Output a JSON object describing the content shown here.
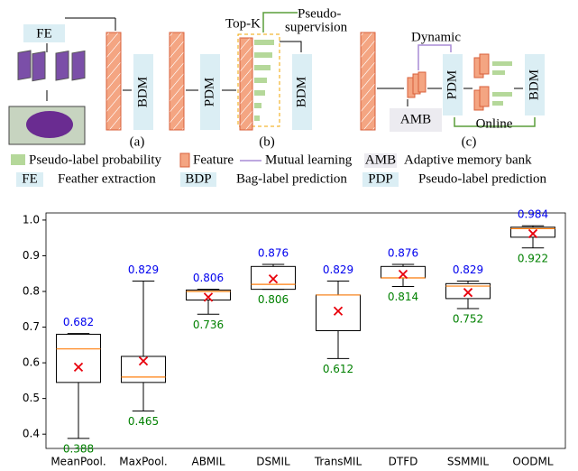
{
  "diagram": {
    "fe": "FE",
    "bdm_a": "BDM",
    "label_a": "(a)",
    "pdm_b": "PDM",
    "bdm_b": "BDM",
    "label_b": "(b)",
    "topk": "Top-K",
    "pseudo_1": "Pseudo-",
    "pseudo_2": "supervision",
    "dynamic": "Dynamic",
    "amb": "AMB",
    "pdm_c": "PDM",
    "bdm_c": "BDM",
    "online": "Online",
    "label_c": "(c)",
    "legend": [
      {
        "label": "Pseudo-label probability"
      },
      {
        "label": "Feature"
      },
      {
        "label": "Mutual learning"
      },
      {
        "key": "AMB",
        "label": "Adaptive memory bank"
      },
      {
        "key": "FE",
        "label": "Feather extraction"
      },
      {
        "key": "BDP",
        "label": "Bag-label prediction"
      },
      {
        "key": "PDP",
        "label": "Pseudo-label prediction"
      }
    ]
  },
  "chart_data": {
    "type": "box",
    "categories": [
      "MeanPool.",
      "MaxPool.",
      "ABMIL",
      "DSMIL",
      "TransMIL",
      "DTFD",
      "SSMMIL",
      "OODML"
    ],
    "max": [
      0.682,
      0.829,
      0.806,
      0.876,
      0.829,
      0.876,
      0.829,
      0.984
    ],
    "q3": [
      0.68,
      0.618,
      0.804,
      0.87,
      0.79,
      0.87,
      0.822,
      0.98
    ],
    "median": [
      0.639,
      0.56,
      0.8,
      0.82,
      0.79,
      0.838,
      0.815,
      0.976
    ],
    "q1": [
      0.545,
      0.545,
      0.776,
      0.806,
      0.69,
      0.838,
      0.78,
      0.952
    ],
    "min": [
      0.388,
      0.465,
      0.736,
      0.806,
      0.612,
      0.814,
      0.752,
      0.922
    ],
    "mean": [
      0.588,
      0.605,
      0.784,
      0.835,
      0.745,
      0.848,
      0.797,
      0.962
    ],
    "median_color": "#ff7f0e",
    "mean_color": "#e8000b",
    "max_label_color": "#0000ee",
    "min_label_color": "#008000",
    "ylim": [
      0.36,
      1.02
    ],
    "yticks": [
      0.4,
      0.5,
      0.6,
      0.7,
      0.8,
      0.9,
      {
        "value": 1,
        "label": "1.0"
      }
    ]
  }
}
